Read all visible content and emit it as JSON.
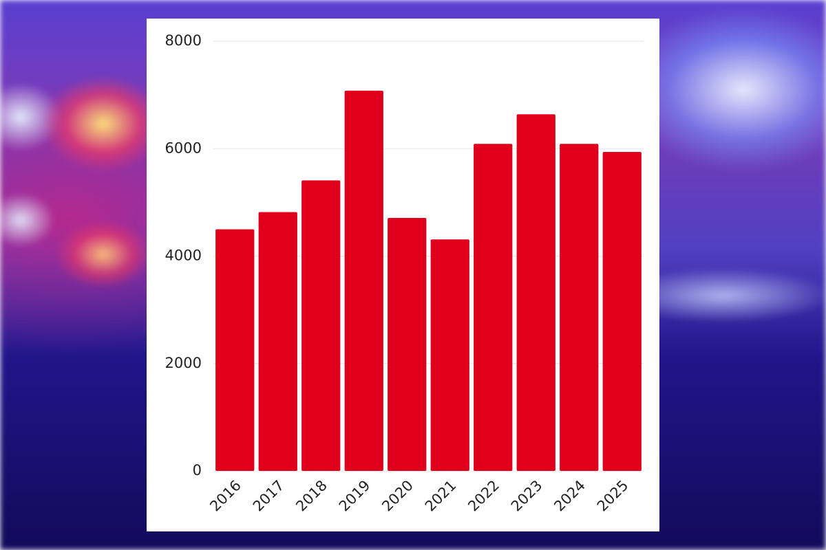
{
  "chart_data": {
    "type": "bar",
    "categories": [
      "2016",
      "2017",
      "2018",
      "2019",
      "2020",
      "2021",
      "2022",
      "2023",
      "2024",
      "2025"
    ],
    "values": [
      4500,
      4820,
      5410,
      7080,
      4710,
      4310,
      6090,
      6640,
      6090,
      5940
    ],
    "color": "#e0001b",
    "ylim": [
      0,
      8000
    ],
    "yticks": [
      0,
      2000,
      4000,
      6000,
      8000
    ],
    "grid": true
  }
}
